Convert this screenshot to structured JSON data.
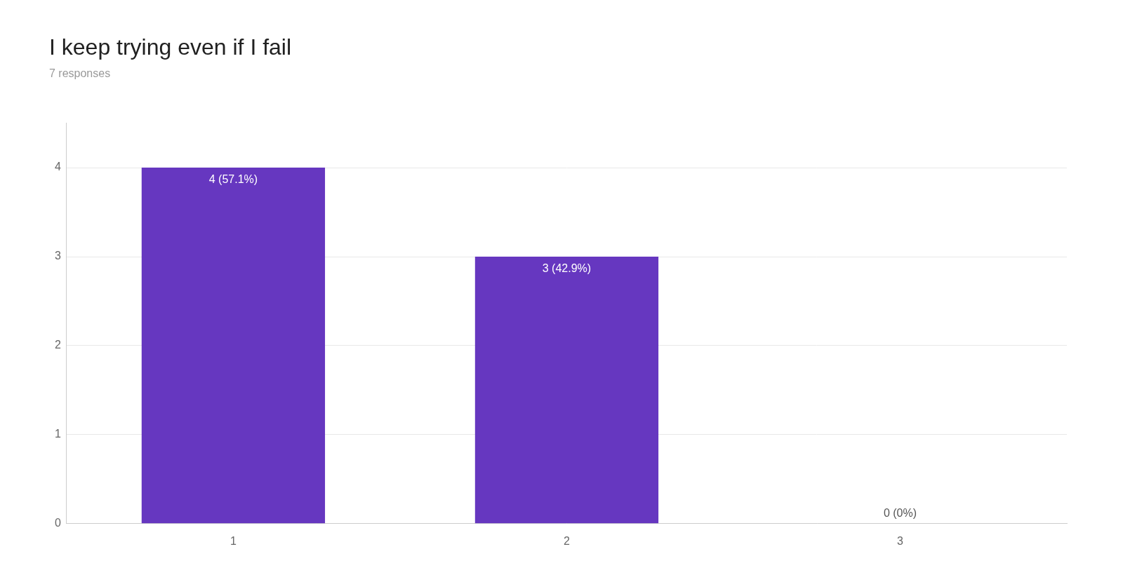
{
  "chart_data": {
    "type": "bar",
    "title": "I keep trying even if I fail",
    "subtitle": "7 responses",
    "categories": [
      1,
      2,
      3
    ],
    "values": [
      4,
      3,
      0
    ],
    "value_labels": [
      "4 (57.1%)",
      "3 (42.9%)",
      "0 (0%)"
    ],
    "color": "#6637C0",
    "ylim": [
      0,
      4.5
    ],
    "yticks": [
      0,
      1,
      2,
      3,
      4
    ],
    "grid": true,
    "data_labels": true
  }
}
